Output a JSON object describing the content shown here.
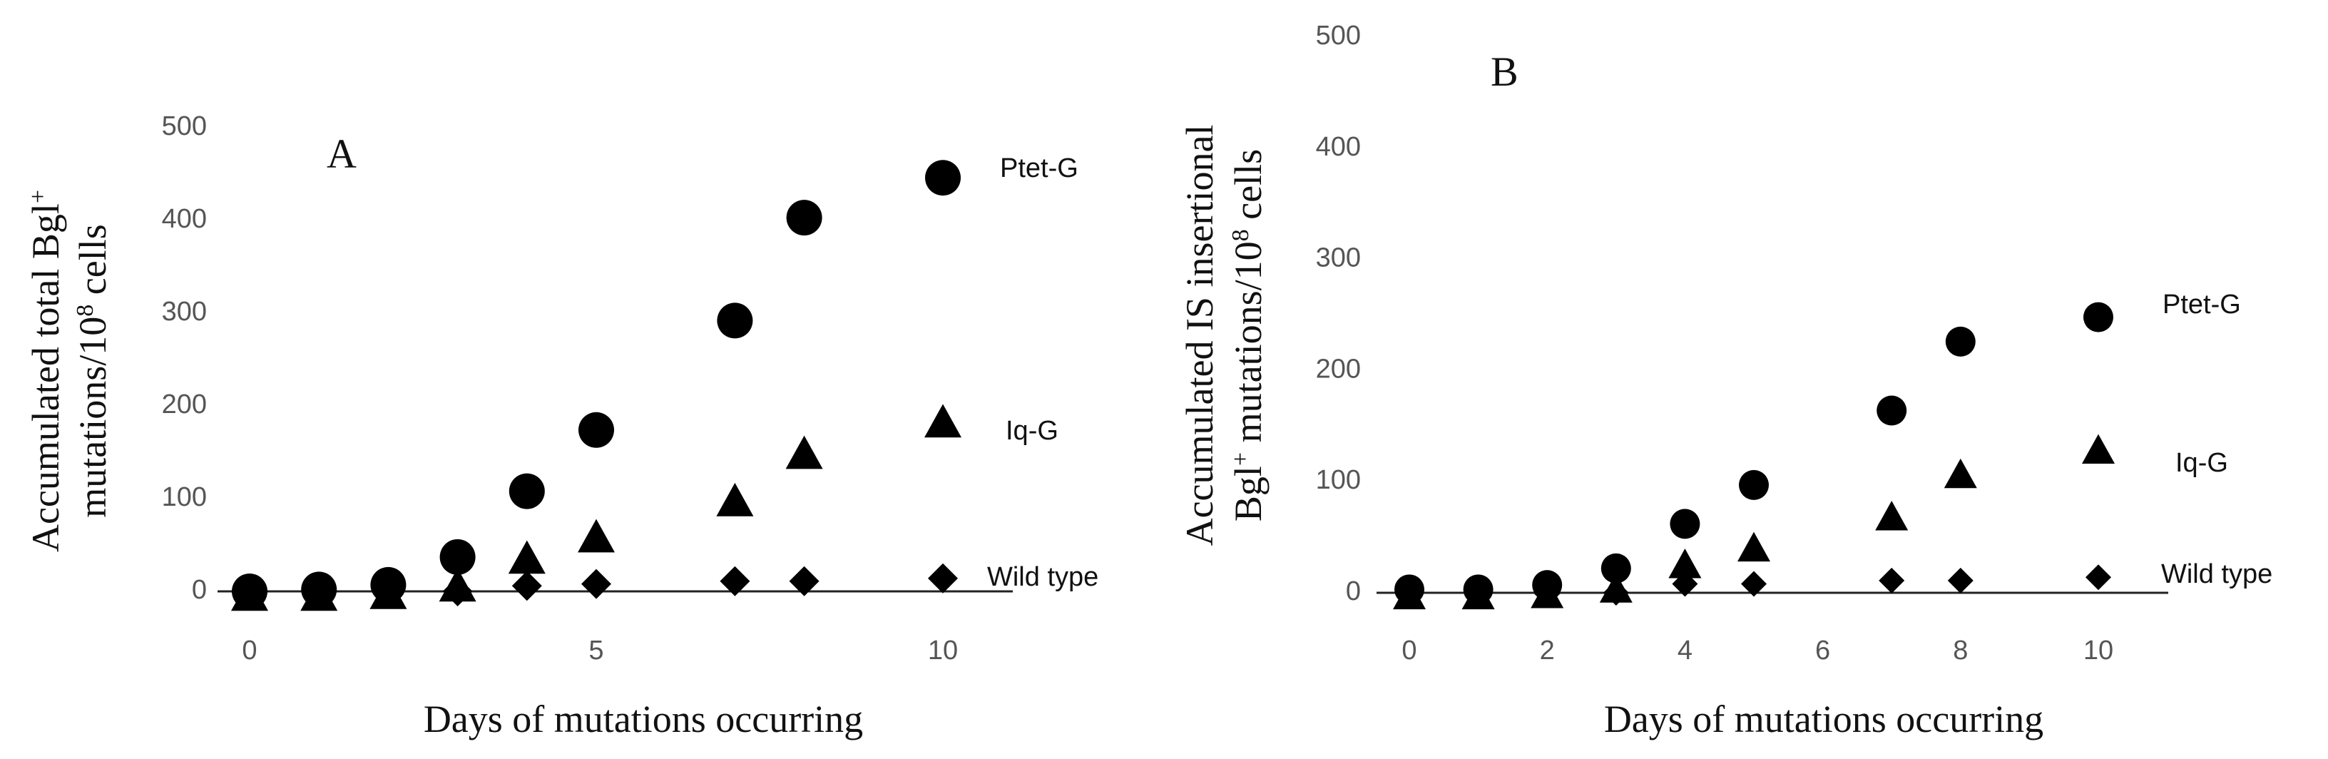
{
  "chart_data": [
    {
      "type": "scatter",
      "panel": "A",
      "xlabel": "Days of mutations occurring",
      "ylabel_line1": "Accumulated total Bgl",
      "ylabel_line1_sup": "+",
      "ylabel_line2": "mutations/10",
      "ylabel_line2_sup": "8",
      "ylabel_line2_end": " cells",
      "xlim": [
        0,
        11
      ],
      "ylim": [
        0,
        500
      ],
      "x_ticks": [
        0,
        5,
        10
      ],
      "y_ticks": [
        0,
        100,
        200,
        300,
        400,
        500
      ],
      "grid": false,
      "series": [
        {
          "name": "Ptet-G",
          "marker": "circle",
          "x": [
            0,
            1,
            2,
            3,
            4,
            5,
            7,
            8,
            10
          ],
          "y": [
            0,
            2,
            7,
            37,
            108,
            174,
            292,
            403,
            446
          ]
        },
        {
          "name": "Iq-G",
          "marker": "triangle",
          "x": [
            0,
            1,
            2,
            3,
            4,
            5,
            7,
            8,
            10
          ],
          "y": [
            -5,
            -5,
            -3,
            5,
            35,
            58,
            97,
            148,
            182
          ]
        },
        {
          "name": "Wild type",
          "marker": "diamond",
          "x": [
            0,
            1,
            2,
            3,
            4,
            5,
            7,
            8,
            10
          ],
          "y": [
            -3,
            -2,
            -1,
            0,
            6,
            8,
            11,
            11,
            14
          ]
        }
      ]
    },
    {
      "type": "scatter",
      "panel": "B",
      "xlabel": "Days of mutations occurring",
      "ylabel_line1": "Accumulated IS insertional",
      "ylabel_line2": "Bgl",
      "ylabel_line2_sup": "+",
      "ylabel_line2_mid": " mutations/10",
      "ylabel_line2_sup2": "8",
      "ylabel_line2_end": " cells",
      "xlim": [
        0,
        11
      ],
      "ylim": [
        0,
        500
      ],
      "x_ticks": [
        0,
        2,
        4,
        6,
        8,
        10
      ],
      "y_ticks": [
        0,
        100,
        200,
        300,
        400,
        500
      ],
      "grid": false,
      "series": [
        {
          "name": "Ptet-G",
          "marker": "circle",
          "x": [
            0,
            1,
            2,
            3,
            4,
            5,
            7,
            8,
            10
          ],
          "y": [
            3,
            3,
            7,
            22,
            62,
            97,
            164,
            226,
            248
          ]
        },
        {
          "name": "Iq-G",
          "marker": "triangle",
          "x": [
            0,
            1,
            2,
            3,
            4,
            5,
            7,
            8,
            10
          ],
          "y": [
            -3,
            -3,
            -2,
            3,
            25,
            40,
            68,
            106,
            128
          ]
        },
        {
          "name": "Wild type",
          "marker": "diamond",
          "x": [
            0,
            1,
            2,
            3,
            4,
            5,
            7,
            8,
            10
          ],
          "y": [
            -2,
            -2,
            -1,
            0,
            8,
            8,
            11,
            11,
            14
          ]
        }
      ]
    }
  ]
}
